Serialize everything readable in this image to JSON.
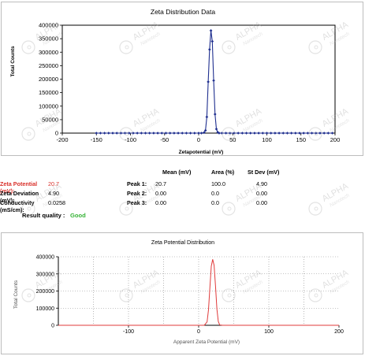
{
  "chart_data": [
    {
      "type": "line",
      "title": "Zeta Distribution Data",
      "xlabel": "Zetapotential (mV)",
      "ylabel": "Total Counts",
      "xlim": [
        -200,
        200
      ],
      "ylim": [
        0,
        400000
      ],
      "xticks": [
        "-200",
        "-150",
        "-100",
        "-50",
        "0",
        "50",
        "100",
        "150",
        "200"
      ],
      "yticks": [
        "0",
        "50000",
        "100000",
        "150000",
        "200000",
        "250000",
        "300000",
        "350000",
        "400000"
      ],
      "grid": false,
      "color": "#1f2f8f",
      "series": [
        {
          "x": [
            -150,
            -144,
            -138,
            -132,
            -126,
            -120,
            -114,
            -108,
            -102,
            -96,
            -90,
            -84,
            -78,
            -72,
            -66,
            -60,
            -54,
            -48,
            -42,
            -36,
            -30,
            -24,
            -18,
            -12,
            -6,
            0,
            4,
            8,
            10,
            12,
            14,
            16,
            18,
            20,
            22,
            24,
            26,
            28,
            30,
            34,
            40,
            46,
            52,
            58,
            64,
            70,
            76,
            82,
            88,
            94,
            100,
            106,
            112,
            118,
            124,
            130,
            136,
            142,
            148,
            154,
            160,
            166,
            172,
            178,
            184,
            190,
            196
          ],
          "y": [
            0,
            0,
            0,
            0,
            0,
            0,
            0,
            0,
            0,
            0,
            0,
            0,
            0,
            0,
            0,
            0,
            0,
            0,
            0,
            0,
            0,
            0,
            0,
            0,
            0,
            0,
            0,
            2000,
            10000,
            60000,
            190000,
            310000,
            380000,
            340000,
            195000,
            70000,
            15000,
            3000,
            0,
            0,
            0,
            0,
            0,
            0,
            0,
            0,
            0,
            0,
            0,
            0,
            0,
            0,
            0,
            0,
            0,
            0,
            0,
            0,
            0,
            0,
            0,
            0,
            0,
            0,
            0,
            0,
            0
          ]
        }
      ]
    },
    {
      "type": "line",
      "title": "Zeta Potential Distribution",
      "xlabel": "Apparent Zeta Potential (mV)",
      "ylabel": "Total Counts",
      "xlim": [
        -200,
        200
      ],
      "ylim": [
        0,
        400000
      ],
      "xticks": [
        "-100",
        "0",
        "100",
        "200"
      ],
      "yticks": [
        "0",
        "100000",
        "200000",
        "300000",
        "400000"
      ],
      "grid": true,
      "color": "#e03b3b",
      "series": [
        {
          "x": [
            -200,
            8,
            12,
            14,
            16,
            18,
            20,
            22,
            24,
            26,
            28,
            30,
            34,
            200
          ],
          "y": [
            0,
            0,
            20000,
            90000,
            220000,
            345000,
            385000,
            350000,
            230000,
            95000,
            22000,
            2000,
            0,
            0
          ]
        }
      ]
    }
  ],
  "stats": {
    "headers": {
      "mean": "Mean (mV)",
      "area": "Area (%)",
      "stdev": "St Dev (mV)"
    },
    "left": [
      {
        "label": "Zeta Potential (mV):",
        "value": "20.7"
      },
      {
        "label": "Zeta Deviation (mV):",
        "value": "4.90"
      },
      {
        "label": "Conductivity (mS/cm):",
        "value": "0.0258"
      }
    ],
    "result": {
      "label": "Result quality :",
      "value": "Good"
    },
    "peaks": [
      {
        "label": "Peak 1:",
        "mean": "20.7",
        "area": "100.0",
        "stdev": "4.90"
      },
      {
        "label": "Peak 2:",
        "mean": "0.00",
        "area": "0.0",
        "stdev": "0.00"
      },
      {
        "label": "Peak 3:",
        "mean": "0.00",
        "area": "0.0",
        "stdev": "0.00"
      }
    ]
  },
  "watermark": {
    "brand": "ALPHA",
    "sub": "Nanotech"
  }
}
